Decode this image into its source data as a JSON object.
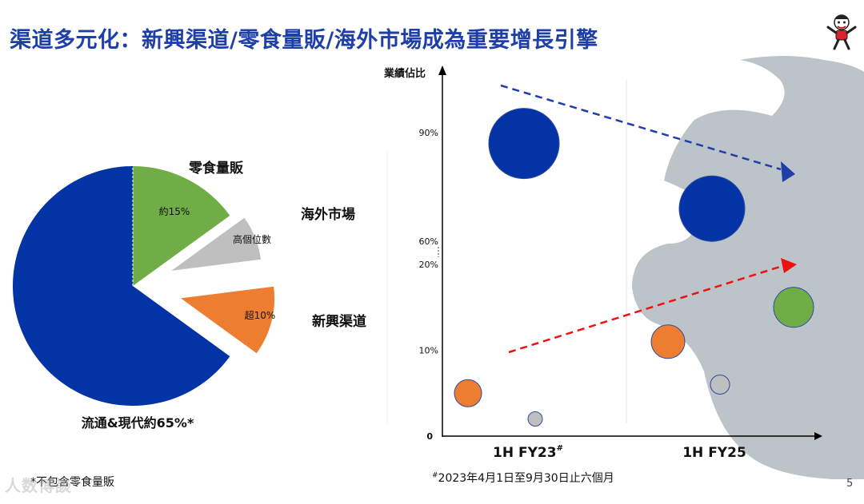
{
  "title": "渠道多元化：新興渠道/零食量販/海外市場成為重要增長引擎",
  "colors": {
    "title": "#1f3fa8",
    "traditional": "#0433a6",
    "snack": "#70ad47",
    "overseas": "#bfbfbf",
    "emerging": "#ed7d31",
    "arrow_blue": "#1f3fa8",
    "arrow_red": "#ee1111",
    "mascot_bg": "#bcc3c9"
  },
  "chart_data": [
    {
      "type": "pie",
      "title": "",
      "slices": [
        {
          "key": "traditional",
          "label": "流通&現代約65%*",
          "value_label": "",
          "value": 65,
          "exploded": false
        },
        {
          "key": "snack",
          "label": "零食量販",
          "value_label": "約15%",
          "value": 15,
          "exploded": true
        },
        {
          "key": "overseas",
          "label": "海外市場",
          "value_label": "高個位數",
          "value": 8,
          "exploded": true
        },
        {
          "key": "emerging",
          "label": "新興渠道",
          "value_label": "超10%",
          "value": 12,
          "exploded": true
        }
      ]
    },
    {
      "type": "scatter",
      "title": "",
      "ylabel": "業績佔比",
      "y_axis_broken": true,
      "lower_ticks": [
        {
          "label": "0",
          "value": 0
        },
        {
          "label": "10%",
          "value": 10
        },
        {
          "label": "20%",
          "value": 20
        }
      ],
      "upper_ticks": [
        {
          "label": "60%",
          "value": 60
        },
        {
          "label": "90%",
          "value": 90
        }
      ],
      "categories": [
        {
          "label": "1H FY23",
          "note_mark": "#"
        },
        {
          "label": "1H FY25",
          "note_mark": ""
        }
      ],
      "series": [
        {
          "name": "流通&現代",
          "key": "traditional",
          "values": [
            87,
            69
          ]
        },
        {
          "name": "零食量販",
          "key": "snack",
          "values": [
            null,
            15
          ]
        },
        {
          "name": "新興渠道",
          "key": "emerging",
          "values": [
            5,
            11
          ]
        },
        {
          "name": "海外市場",
          "key": "overseas",
          "values": [
            2,
            6
          ]
        }
      ],
      "trend_arrows": [
        "declining share of traditional channels",
        "rising share of new channels"
      ]
    }
  ],
  "footnote": "*不包含零食量販",
  "footnote2_mark": "#",
  "footnote2": "2023年4月1日至9月30日止六個月",
  "page_number": "5",
  "watermark": "人数博談"
}
